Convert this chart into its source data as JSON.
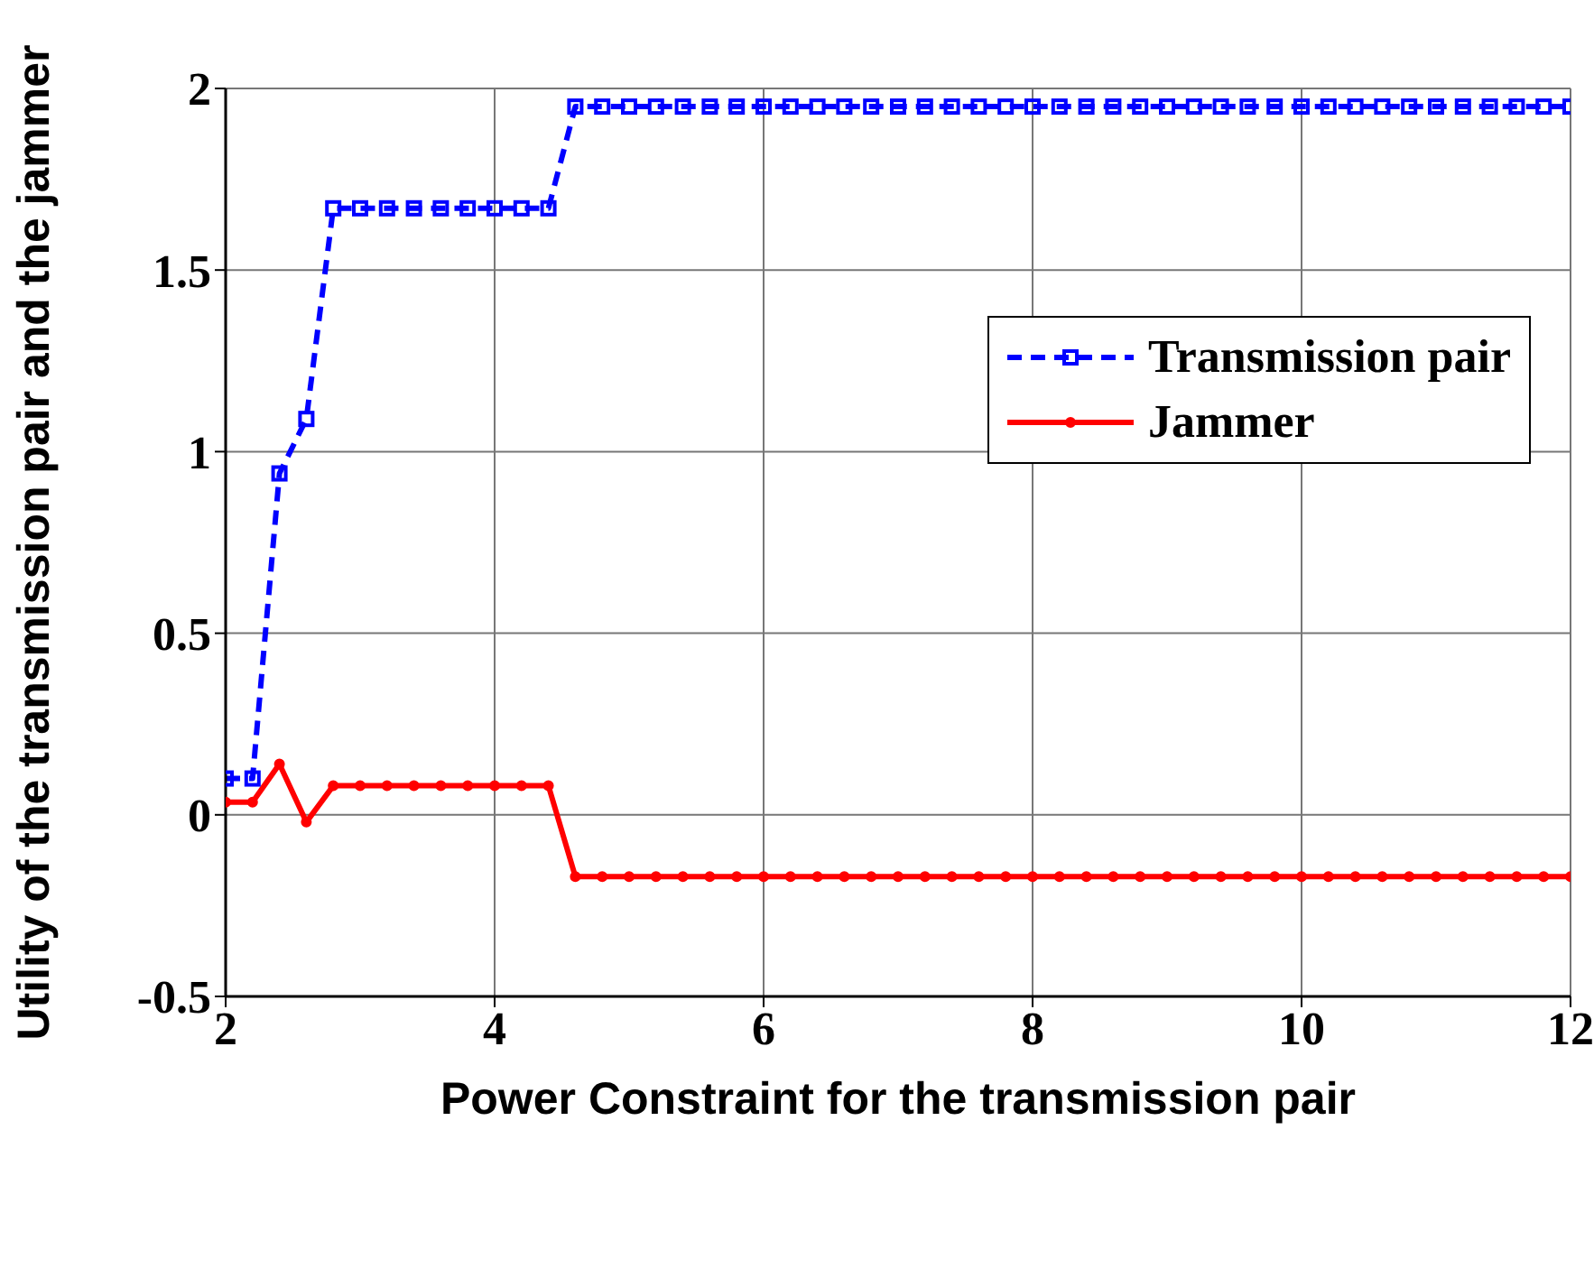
{
  "chart_data": {
    "type": "line",
    "xlabel": "Power Constraint for the transmission pair",
    "ylabel": "Utility of the transmission pair and the jammer",
    "x": [
      2,
      2.2,
      2.4,
      2.6,
      2.8,
      3,
      3.2,
      3.4,
      3.6,
      3.8,
      4,
      4.2,
      4.4,
      4.6,
      4.8,
      5,
      5.2,
      5.4,
      5.6,
      5.8,
      6,
      6.2,
      6.4,
      6.6,
      6.8,
      7,
      7.2,
      7.4,
      7.6,
      7.8,
      8,
      8.2,
      8.4,
      8.6,
      8.8,
      9,
      9.2,
      9.4,
      9.6,
      9.8,
      10,
      10.2,
      10.4,
      10.6,
      10.8,
      11,
      11.2,
      11.4,
      11.6,
      11.8,
      12
    ],
    "series": [
      {
        "name": "Transmission pair",
        "color": "#0000ff",
        "marker": "square",
        "line_style": "dashed",
        "values": [
          0.1,
          0.1,
          0.94,
          1.09,
          1.67,
          1.67,
          1.67,
          1.67,
          1.67,
          1.67,
          1.67,
          1.67,
          1.67,
          1.95,
          1.95,
          1.95,
          1.95,
          1.95,
          1.95,
          1.95,
          1.95,
          1.95,
          1.95,
          1.95,
          1.95,
          1.95,
          1.95,
          1.95,
          1.95,
          1.95,
          1.95,
          1.95,
          1.95,
          1.95,
          1.95,
          1.95,
          1.95,
          1.95,
          1.95,
          1.95,
          1.95,
          1.95,
          1.95,
          1.95,
          1.95,
          1.95,
          1.95,
          1.95,
          1.95,
          1.95,
          1.95
        ]
      },
      {
        "name": "Jammer",
        "color": "#ff0000",
        "marker": "circle",
        "line_style": "solid",
        "values": [
          0.035,
          0.035,
          0.14,
          -0.02,
          0.08,
          0.08,
          0.08,
          0.08,
          0.08,
          0.08,
          0.08,
          0.08,
          0.08,
          -0.17,
          -0.17,
          -0.17,
          -0.17,
          -0.17,
          -0.17,
          -0.17,
          -0.17,
          -0.17,
          -0.17,
          -0.17,
          -0.17,
          -0.17,
          -0.17,
          -0.17,
          -0.17,
          -0.17,
          -0.17,
          -0.17,
          -0.17,
          -0.17,
          -0.17,
          -0.17,
          -0.17,
          -0.17,
          -0.17,
          -0.17,
          -0.17,
          -0.17,
          -0.17,
          -0.17,
          -0.17,
          -0.17,
          -0.17,
          -0.17,
          -0.17,
          -0.17,
          -0.17
        ]
      }
    ],
    "xlim": [
      2,
      12
    ],
    "xticks": [
      2,
      4,
      6,
      8,
      10,
      12
    ],
    "ylim": [
      -0.5,
      2
    ],
    "yticks": [
      -0.5,
      0,
      0.5,
      1,
      1.5,
      2
    ],
    "grid": true,
    "legend": "top right"
  }
}
